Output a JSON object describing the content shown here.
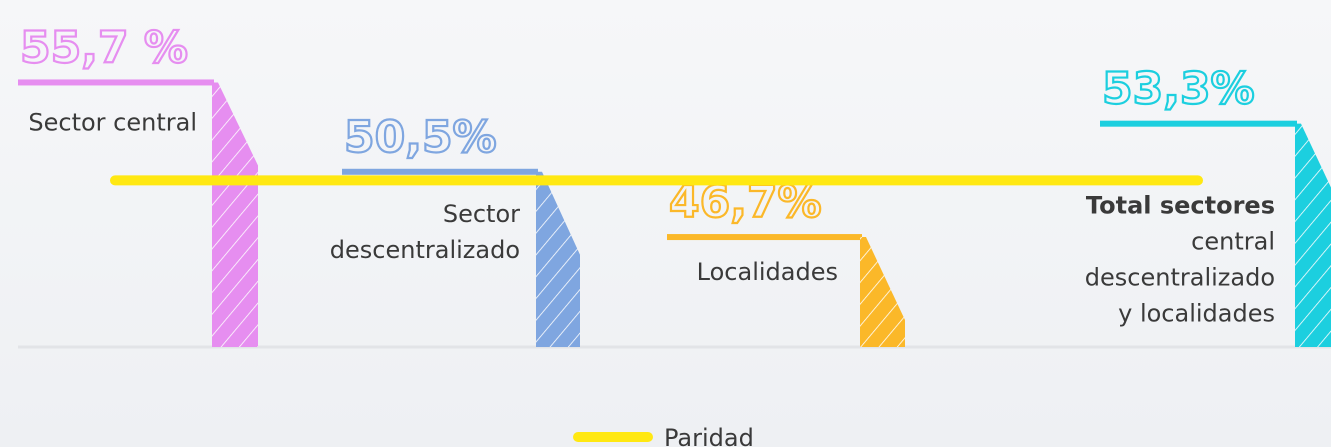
{
  "chart_data": {
    "type": "bar",
    "categories": [
      [
        "Sector central"
      ],
      [
        "Sector",
        "descentralizado"
      ],
      [
        "Localidades"
      ],
      [
        "Total sectores",
        "central",
        "descentralizado",
        "y localidades"
      ]
    ],
    "bold_first_line": [
      false,
      false,
      false,
      true
    ],
    "values": [
      55.7,
      50.5,
      46.7,
      53.3
    ],
    "value_labels": [
      "55,7 %",
      "50,5%",
      "46,7%",
      "53,3%"
    ],
    "colors": [
      "#e68ef0",
      "#7fa6e0",
      "#fbb829",
      "#1ccfdf"
    ],
    "ylim": [
      40.3,
      60.5
    ],
    "reference_line": {
      "name": "Paridad",
      "value": 50,
      "color": "#ffe812"
    }
  }
}
